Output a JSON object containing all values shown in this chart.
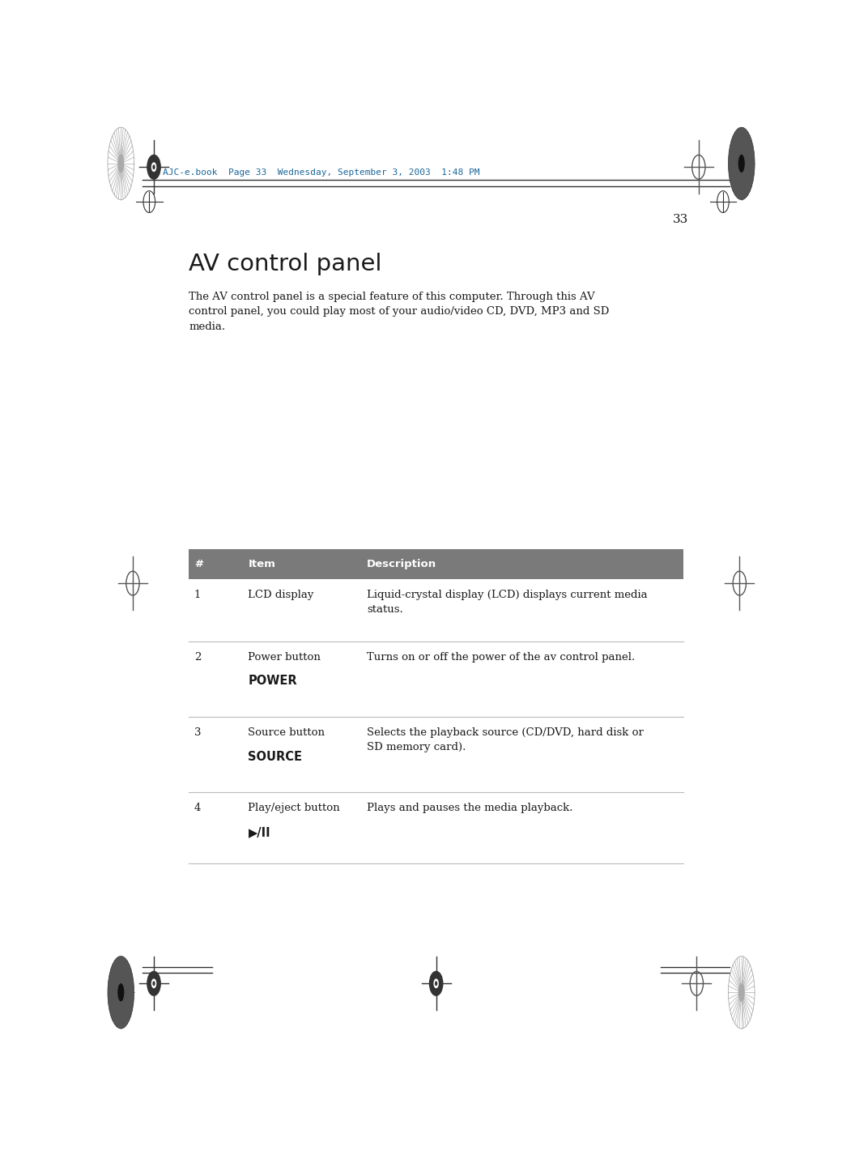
{
  "page_num": "33",
  "header_text": "AJC-e.book  Page 33  Wednesday, September 3, 2003  1:48 PM",
  "title": "AV control panel",
  "intro_text": "The AV control panel is a special feature of this computer. Through this AV\ncontrol panel, you could play most of your audio/video CD, DVD, MP3 and SD\nmedia.",
  "table_header": [
    "#",
    "Item",
    "Description"
  ],
  "table_header_bg": "#7a7a7a",
  "table_header_color": "#ffffff",
  "table_rows": [
    {
      "num": "1",
      "item": "LCD display",
      "item_sub": "",
      "desc": "Liquid-crystal display (LCD) displays current media\nstatus."
    },
    {
      "num": "2",
      "item": "Power button",
      "item_sub": "POWER",
      "desc": "Turns on or off the power of the av control panel."
    },
    {
      "num": "3",
      "item": "Source button",
      "item_sub": "SOURCE",
      "desc": "Selects the playback source (CD/DVD, hard disk or\nSD memory card)."
    },
    {
      "num": "4",
      "item": "Play/eject button",
      "item_sub": "▶/II",
      "desc": "Plays and pauses the media playback."
    }
  ],
  "bg_color": "#ffffff",
  "text_color": "#1a1a1a",
  "line_color": "#999999"
}
